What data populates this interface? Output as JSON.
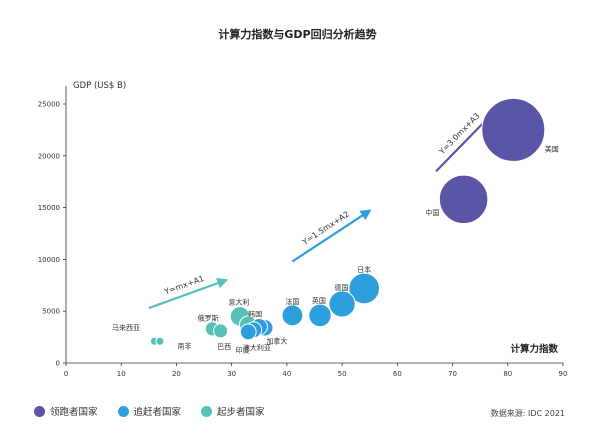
{
  "chart_data": {
    "type": "scatter",
    "title": "计算力指数与GDP回归分析趋势",
    "xlabel": "计算力指数",
    "ylabel": "GDP (US$ B)",
    "xlim": [
      0,
      90
    ],
    "ylim": [
      0,
      25000
    ],
    "x_ticks": [
      "0",
      "10",
      "20",
      "30",
      "40",
      "50",
      "60",
      "70",
      "80",
      "90"
    ],
    "y_ticks": [
      "0",
      "5000",
      "10000",
      "15000",
      "20000",
      "25000"
    ],
    "grid": false,
    "legend_position": "bottom-left",
    "colors": {
      "leader": "#5b55a8",
      "follower": "#2e9fdc",
      "starter": "#55c1b8",
      "axis": "#333333"
    },
    "series": [
      {
        "name": "领跑者国家",
        "color_key": "leader",
        "points": [
          {
            "label": "美国",
            "x": 81,
            "y": 22500,
            "size": 11
          },
          {
            "label": "中国",
            "x": 72,
            "y": 15800,
            "size": 6.5
          }
        ]
      },
      {
        "name": "追赶者国家",
        "color_key": "follower",
        "points": [
          {
            "label": "日本",
            "x": 54,
            "y": 7200,
            "size": 2.6
          },
          {
            "label": "德国",
            "x": 50,
            "y": 5700,
            "size": 1.9
          },
          {
            "label": "英国",
            "x": 46,
            "y": 4600,
            "size": 1.4
          },
          {
            "label": "法国",
            "x": 41,
            "y": 4600,
            "size": 1.2
          },
          {
            "label": "加拿大",
            "x": 36,
            "y": 3400,
            "size": 0.75
          },
          {
            "label": "韩国",
            "x": 35,
            "y": 3500,
            "size": 0.75
          },
          {
            "label": "澳大利亚",
            "x": 34,
            "y": 3200,
            "size": 0.7
          },
          {
            "label": "印度",
            "x": 33,
            "y": 3000,
            "size": 0.7
          }
        ]
      },
      {
        "name": "起步者国家",
        "color_key": "starter",
        "points": [
          {
            "label": "意大利",
            "x": 31.5,
            "y": 4500,
            "size": 1.05
          },
          {
            "label": "",
            "x": 33,
            "y": 3700,
            "size": 0.85
          },
          {
            "label": "俄罗斯",
            "x": 26.5,
            "y": 3300,
            "size": 0.55
          },
          {
            "label": "巴西",
            "x": 28,
            "y": 3100,
            "size": 0.55
          },
          {
            "label": "马来西亚",
            "x": 16,
            "y": 2100,
            "size": 0.12
          },
          {
            "label": "南非",
            "x": 17,
            "y": 2100,
            "size": 0.12
          }
        ]
      }
    ],
    "trend_lines": [
      {
        "label": "Y=mx+A1",
        "color_key": "starter",
        "from": [
          15,
          5300
        ],
        "to": [
          29,
          8000
        ]
      },
      {
        "label": "Y=1.5mx+A2",
        "color_key": "follower",
        "from": [
          41,
          9800
        ],
        "to": [
          55,
          14700
        ]
      },
      {
        "label": "Y=3.0mx+A3",
        "color_key": "leader",
        "from": [
          67,
          18500
        ],
        "to": [
          78,
          24500
        ]
      }
    ]
  },
  "legend": [
    {
      "label": "领跑者国家",
      "color_key": "leader"
    },
    {
      "label": "追赶者国家",
      "color_key": "follower"
    },
    {
      "label": "起步者国家",
      "color_key": "starter"
    }
  ],
  "source": "数据来源: IDC 2021"
}
